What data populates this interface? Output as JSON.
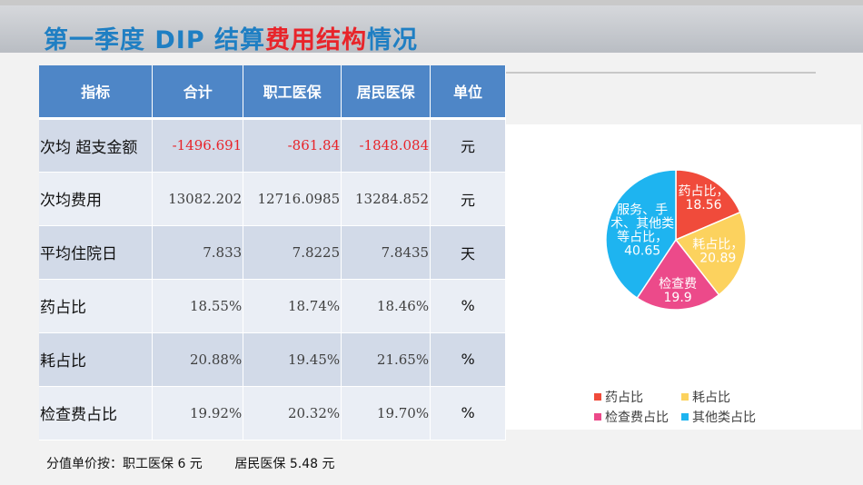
{
  "title": {
    "part1": "第一季度 DIP 结算",
    "part2": "费用结构",
    "part3": "情况"
  },
  "table": {
    "headers": [
      "指标",
      "合计",
      "职工医保",
      "居民医保",
      "单位"
    ],
    "rows": [
      {
        "label": "次均 超支金额",
        "total": "-1496.691",
        "employee": "-861.84",
        "resident": "-1848.084",
        "unit": "元"
      },
      {
        "label": "次均费用",
        "total": "13082.202",
        "employee": "12716.0985",
        "resident": "13284.852",
        "unit": "元"
      },
      {
        "label": "平均住院日",
        "total": "7.833",
        "employee": "7.8225",
        "resident": "7.8435",
        "unit": "天"
      },
      {
        "label": "药占比",
        "total": "18.55%",
        "employee": "18.74%",
        "resident": "18.46%",
        "unit": "%"
      },
      {
        "label": "耗占比",
        "total": "20.88%",
        "employee": "19.45%",
        "resident": "21.65%",
        "unit": "%"
      },
      {
        "label": "检查费占比",
        "total": "19.92%",
        "employee": "20.32%",
        "resident": "19.70%",
        "unit": "%"
      }
    ]
  },
  "footnote": {
    "employee": "分值单价按：职工医保 6 元",
    "resident": "居民医保 5.48 元"
  },
  "chart_data": {
    "type": "pie",
    "slices": [
      {
        "name": "药占比",
        "value": 18.56,
        "color": "#f04b3b",
        "label_lines": [
          "药占比，",
          "18.56"
        ]
      },
      {
        "name": "耗占比",
        "value": 20.89,
        "color": "#fcd25e",
        "label_lines": [
          "耗占比，",
          "20.89"
        ]
      },
      {
        "name": "检查费占比",
        "value": 19.9,
        "color": "#ec4a8a",
        "label_lines": [
          "检查费",
          "19.9"
        ]
      },
      {
        "name": "其他类占比",
        "value": 40.65,
        "color": "#1eb4f0",
        "label_lines": [
          "服务、手",
          "术、其他类",
          "等占比，",
          "40.65"
        ]
      }
    ],
    "legend": [
      "药占比",
      "耗占比",
      "检查费占比",
      "其他类占比"
    ],
    "legend_position": "bottom"
  }
}
